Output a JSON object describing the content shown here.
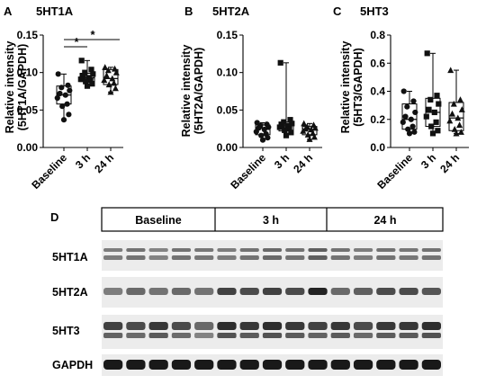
{
  "chart_data": [
    {
      "panel_letter": "A",
      "title": "5HT1A",
      "type": "box",
      "ylabel_line1": "Relative intensity",
      "ylabel_line2": "(5HT1A/GAPDH)",
      "ylim": [
        0,
        0.15
      ],
      "yticks": [
        "0.00",
        "0.05",
        "0.10",
        "0.15"
      ],
      "categories": [
        "Baseline",
        "3 h",
        "24 h"
      ],
      "significance": [
        "*",
        "*"
      ],
      "series": [
        {
          "marker": "circle",
          "min": 0.037,
          "q1": 0.058,
          "median": 0.07,
          "q3": 0.082,
          "max": 0.098,
          "points": [
            0.098,
            0.083,
            0.08,
            0.076,
            0.072,
            0.07,
            0.066,
            0.058,
            0.055,
            0.044,
            0.037
          ]
        },
        {
          "marker": "square",
          "min": 0.082,
          "q1": 0.088,
          "median": 0.093,
          "q3": 0.099,
          "max": 0.116,
          "points": [
            0.116,
            0.104,
            0.1,
            0.098,
            0.095,
            0.093,
            0.091,
            0.09,
            0.088,
            0.085,
            0.082
          ]
        },
        {
          "marker": "triangle",
          "min": 0.074,
          "q1": 0.084,
          "median": 0.092,
          "q3": 0.104,
          "max": 0.107,
          "points": [
            0.107,
            0.105,
            0.103,
            0.1,
            0.096,
            0.092,
            0.09,
            0.086,
            0.084,
            0.079,
            0.074
          ]
        }
      ]
    },
    {
      "panel_letter": "B",
      "title": "5HT2A",
      "type": "box",
      "ylabel_line1": "Relative intensity",
      "ylabel_line2": "(5HT2A/GAPDH)",
      "ylim": [
        0,
        0.15
      ],
      "yticks": [
        "0.00",
        "0.05",
        "0.10",
        "0.15"
      ],
      "categories": [
        "Baseline",
        "3 h",
        "24 h"
      ],
      "series": [
        {
          "marker": "circle",
          "min": 0.01,
          "q1": 0.017,
          "median": 0.026,
          "q3": 0.03,
          "max": 0.033,
          "points": [
            0.033,
            0.031,
            0.029,
            0.027,
            0.026,
            0.024,
            0.021,
            0.018,
            0.016,
            0.013,
            0.01
          ]
        },
        {
          "marker": "square",
          "min": 0.016,
          "q1": 0.022,
          "median": 0.029,
          "q3": 0.034,
          "max": 0.113,
          "points": [
            0.113,
            0.037,
            0.034,
            0.032,
            0.03,
            0.029,
            0.027,
            0.025,
            0.023,
            0.02,
            0.016
          ]
        },
        {
          "marker": "triangle",
          "min": 0.011,
          "q1": 0.017,
          "median": 0.024,
          "q3": 0.028,
          "max": 0.032,
          "points": [
            0.032,
            0.03,
            0.028,
            0.026,
            0.025,
            0.024,
            0.022,
            0.019,
            0.017,
            0.014,
            0.011
          ]
        }
      ]
    },
    {
      "panel_letter": "C",
      "title": "5HT3",
      "type": "box",
      "ylabel_line1": "Relative intensity",
      "ylabel_line2": "(5HT3/GAPDH)",
      "ylim": [
        0,
        0.8
      ],
      "yticks": [
        "0.0",
        "0.2",
        "0.4",
        "0.6",
        "0.8"
      ],
      "categories": [
        "Baseline",
        "3 h",
        "24 h"
      ],
      "series": [
        {
          "marker": "circle",
          "min": 0.1,
          "q1": 0.13,
          "median": 0.2,
          "q3": 0.31,
          "max": 0.4,
          "points": [
            0.4,
            0.33,
            0.29,
            0.25,
            0.22,
            0.2,
            0.18,
            0.15,
            0.13,
            0.11,
            0.1
          ]
        },
        {
          "marker": "square",
          "min": 0.1,
          "q1": 0.15,
          "median": 0.25,
          "q3": 0.35,
          "max": 0.67,
          "points": [
            0.67,
            0.37,
            0.34,
            0.31,
            0.27,
            0.25,
            0.22,
            0.18,
            0.15,
            0.12,
            0.1
          ]
        },
        {
          "marker": "triangle",
          "min": 0.1,
          "q1": 0.12,
          "median": 0.21,
          "q3": 0.32,
          "max": 0.55,
          "points": [
            0.55,
            0.34,
            0.31,
            0.27,
            0.24,
            0.21,
            0.19,
            0.16,
            0.13,
            0.11,
            0.1
          ]
        }
      ]
    }
  ],
  "blot": {
    "panel_letter": "D",
    "groups": [
      "Baseline",
      "3 h",
      "24 h"
    ],
    "lanes_per_group": 5,
    "rows": [
      {
        "label": "5HT1A",
        "intensity": [
          0.45,
          0.5,
          0.42,
          0.5,
          0.48,
          0.45,
          0.5,
          0.55,
          0.5,
          0.6,
          0.5,
          0.45,
          0.5,
          0.48,
          0.5
        ]
      },
      {
        "label": "5HT2A",
        "intensity": [
          0.45,
          0.55,
          0.5,
          0.55,
          0.5,
          0.75,
          0.7,
          0.75,
          0.7,
          0.9,
          0.55,
          0.6,
          0.7,
          0.7,
          0.65
        ]
      },
      {
        "label": "5HT3",
        "intensity": [
          0.75,
          0.7,
          0.8,
          0.7,
          0.55,
          0.85,
          0.8,
          0.85,
          0.8,
          0.75,
          0.8,
          0.7,
          0.8,
          0.8,
          0.85
        ]
      },
      {
        "label": "GAPDH",
        "intensity": [
          0.95,
          0.95,
          0.95,
          0.95,
          0.95,
          0.95,
          0.95,
          0.95,
          0.95,
          0.95,
          0.95,
          0.95,
          0.95,
          0.95,
          0.95
        ]
      }
    ]
  }
}
